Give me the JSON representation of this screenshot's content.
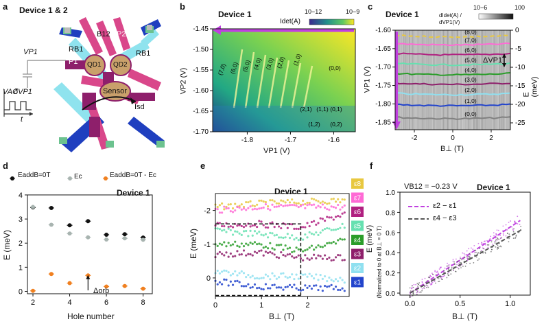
{
  "panel_a": {
    "label": "a",
    "title": "Device 1 & 2",
    "gates": {
      "b12": "B12",
      "p2": "P2",
      "rb1_left": "RB1",
      "rb1_right": "RB1",
      "p1": "P1"
    },
    "dots": {
      "qd1": "QD1",
      "qd2": "QD2",
      "sensor": "Sensor"
    },
    "labels": {
      "vp1": "VP1",
      "vac": "VAC",
      "dvp1": "δVP1",
      "t": "t",
      "isd": "Isd"
    },
    "colors": {
      "gate_pink": "#d9478a",
      "gate_cyan": "#8fe3ee",
      "gate_blue": "#1f3fbf",
      "gate_dark": "#8e1f6b",
      "dot_tan": "#c9a06b",
      "contact_green": "#6cc28f"
    }
  },
  "panel_b": {
    "label": "b",
    "colorbar": {
      "min": "10−12",
      "max": "10−9",
      "title": "Idet(A)"
    },
    "colors": {
      "arrow": "#c040e0"
    },
    "chart_data": {
      "type": "heatmap",
      "title": "Device 1",
      "xlabel": "VP1 (V)",
      "ylabel": "VP2 (V)",
      "xlim": [
        -1.88,
        -1.55
      ],
      "ylim": [
        -1.7,
        -1.45
      ],
      "xticks": [
        "-1.8",
        "-1.7",
        "-1.6"
      ],
      "yticks": [
        "-1.45",
        "-1.50",
        "-1.55",
        "-1.60",
        "-1.65",
        "-1.70"
      ],
      "annotations": [
        "(6,0)",
        "(5,0)",
        "(4,0)",
        "(3,0)",
        "(2,0)",
        "(1,0)",
        "(0,0)",
        "(7,0)",
        "(2,1)",
        "(1,1)",
        "(0,1)",
        "(1,2)",
        "(0,2)"
      ]
    }
  },
  "panel_c": {
    "label": "c",
    "colorbar": {
      "min": "10−6",
      "max": "100",
      "title": "dIdet(A) / dVP1(V)"
    },
    "delta_label": "ΔVP1",
    "colors": {
      "arrow": "#c040e0"
    },
    "chart_data": {
      "type": "heatmap",
      "title": "Device 1",
      "xlabel": "B⊥ (T)",
      "ylabel": "VP1 (V)",
      "ylabel_right": "E (meV)",
      "xlim": [
        -3,
        3
      ],
      "ylim": [
        -1.87,
        -1.6
      ],
      "xticks": [
        "-2",
        "0",
        "2"
      ],
      "yticks": [
        "-1.60",
        "-1.65",
        "-1.70",
        "-1.75",
        "-1.80",
        "-1.85"
      ],
      "yticks_right": [
        "0",
        "-5",
        "-10",
        "-15",
        "-20",
        "-25"
      ],
      "series": [
        {
          "name": "(0,0)",
          "color": "#808080",
          "value": -1.63
        },
        {
          "name": "(1,0)",
          "color": "#2244cc",
          "value": -1.665
        },
        {
          "name": "(2,0)",
          "color": "#90e0f0",
          "value": -1.695
        },
        {
          "name": "(3,0)",
          "color": "#8e1f6b",
          "value": -1.723
        },
        {
          "name": "(4,0)",
          "color": "#2a9d2a",
          "value": -1.749
        },
        {
          "name": "(5,0)",
          "color": "#66e0b0",
          "value": -1.776
        },
        {
          "name": "(6,0)",
          "color": "#b02080",
          "value": -1.803
        },
        {
          "name": "(7,0)",
          "color": "#ff6ad5",
          "value": -1.83
        },
        {
          "name": "(8,0)",
          "color": "#e8c840",
          "value": -1.852
        }
      ]
    }
  },
  "panel_d": {
    "label": "d",
    "legend": [
      "EaddB=0T",
      "Ec",
      "EaddB=0T - Ec"
    ],
    "delta_orb": "Δorb",
    "colors": {
      "eadd": "#111111",
      "ec": "#a8b4b0",
      "diff": "#f08020"
    },
    "chart_data": {
      "type": "scatter",
      "title": "Device 1",
      "xlabel": "Hole number",
      "ylabel": "E (meV)",
      "xlim": [
        1.7,
        8.5
      ],
      "ylim": [
        -0.1,
        4
      ],
      "xticks": [
        "2",
        "4",
        "6",
        "8"
      ],
      "yticks": [
        "0",
        "1",
        "2",
        "3",
        "4"
      ],
      "x": [
        2,
        3,
        4,
        5,
        6,
        7,
        8
      ],
      "series": [
        {
          "name": "EaddB=0T",
          "values": [
            3.48,
            3.46,
            2.74,
            2.91,
            2.35,
            2.37,
            2.23
          ]
        },
        {
          "name": "Ec",
          "values": [
            3.5,
            2.76,
            2.4,
            2.24,
            2.15,
            2.2,
            2.14
          ]
        },
        {
          "name": "EaddB=0T - Ec",
          "values": [
            0.02,
            0.72,
            0.34,
            0.66,
            0.2,
            0.22,
            0.11
          ]
        }
      ]
    }
  },
  "panel_e": {
    "label": "e",
    "chart_data": {
      "type": "scatter",
      "title": "Device 1",
      "xlabel": "B⊥ (T)",
      "ylabel": "E (meV)",
      "xlim": [
        0,
        2.9
      ],
      "ylim": [
        0.55,
        -2.5
      ],
      "xticks": [
        "0",
        "1",
        "2"
      ],
      "yticks": [
        "-2",
        "-1",
        "0"
      ],
      "series": [
        {
          "name": "ε8",
          "color": "#e8c840",
          "values": [
            -2.1,
            -2.2,
            -2.25,
            -2.3
          ]
        },
        {
          "name": "ε7",
          "color": "#ff6ad5",
          "values": [
            -2.0,
            -2.1,
            -2.1,
            -2.1
          ]
        },
        {
          "name": "ε6",
          "color": "#b02080",
          "values": [
            -1.55,
            -1.6,
            -1.5,
            -1.9
          ]
        },
        {
          "name": "ε5",
          "color": "#66e0b0",
          "values": [
            -1.4,
            -1.3,
            -1.2,
            -1.55
          ]
        },
        {
          "name": "ε4",
          "color": "#2a9d2a",
          "values": [
            -1.0,
            -1.0,
            -0.8,
            -1.1
          ]
        },
        {
          "name": "ε3",
          "color": "#8e1f6b",
          "values": [
            -0.7,
            -0.75,
            -0.6,
            -0.6
          ]
        },
        {
          "name": "ε2",
          "color": "#90e0f0",
          "values": [
            -0.2,
            -0.05,
            -0.05,
            0.05
          ]
        },
        {
          "name": "ε1",
          "color": "#2244cc",
          "values": [
            0.1,
            0.25,
            0.3,
            0.3
          ]
        }
      ]
    }
  },
  "panel_f": {
    "label": "f",
    "condition": "VB12 = −0.23 V",
    "chart_data": {
      "type": "scatter",
      "title": "Device 1",
      "xlabel": "B⊥ (T)",
      "ylabel": "E (meV)",
      "ylabel_sub": "(Normalized to 0 at B⊥ = 0 T)",
      "xlim": [
        -0.1,
        1.2
      ],
      "ylim": [
        -0.02,
        1.0
      ],
      "xticks": [
        "0.0",
        "0.5",
        "1.0"
      ],
      "yticks": [
        "0.0",
        "0.2",
        "0.4",
        "0.6",
        "0.8",
        "1.0"
      ],
      "series": [
        {
          "name": "ε2 − ε1",
          "color": "#c040e0",
          "x": [
            0,
            1.1
          ],
          "values": [
            0.0,
            0.72
          ]
        },
        {
          "name": "ε4 − ε3",
          "color": "#555555",
          "x": [
            0,
            1.1
          ],
          "values": [
            0.0,
            0.62
          ]
        }
      ]
    }
  }
}
